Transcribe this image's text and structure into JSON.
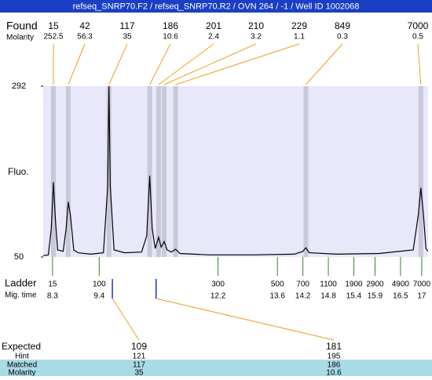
{
  "header": {
    "title": "refseq_SNRP70.F2 / refseq_SNRP70.R2 / OVN 264 / -1 / Well ID 1002068"
  },
  "chart_data": {
    "type": "line",
    "y_label": "Fluo.",
    "ylim": [
      50,
      292
    ],
    "yticks": [
      50,
      292
    ],
    "xlim": [
      8.08,
      17.15
    ],
    "found": {
      "label": "Found",
      "molarity_label": "Molarity",
      "sizes": [
        15,
        42,
        117,
        186,
        201,
        210,
        229,
        849,
        7000
      ],
      "molarities": [
        252.5,
        56.3,
        35,
        10.6,
        2.4,
        3.2,
        1.1,
        0.3,
        0.5
      ],
      "times": [
        8.32,
        8.67,
        9.63,
        10.59,
        10.8,
        10.93,
        11.2,
        14.27,
        16.98
      ]
    },
    "ladder": {
      "label": "Ladder",
      "time_label": "Mig. time",
      "sizes": [
        15,
        100,
        300,
        500,
        700,
        1100,
        1900,
        2900,
        4900,
        7000
      ],
      "times": [
        8.3,
        9.4,
        12.2,
        13.6,
        14.2,
        14.8,
        15.4,
        15.9,
        16.5,
        17
      ]
    },
    "series": [
      {
        "color": "#000000",
        "x": [
          8.08,
          8.2,
          8.27,
          8.32,
          8.37,
          8.42,
          8.55,
          8.62,
          8.67,
          8.72,
          8.8,
          8.9,
          9.2,
          9.5,
          9.6,
          9.63,
          9.66,
          9.75,
          10.0,
          10.4,
          10.52,
          10.59,
          10.65,
          10.72,
          10.8,
          10.86,
          10.93,
          11.0,
          11.1,
          11.2,
          11.3,
          12.0,
          13.0,
          14.0,
          14.2,
          14.27,
          14.35,
          15.0,
          16.0,
          16.8,
          16.92,
          16.98,
          17.04,
          17.1,
          17.15
        ],
        "values": [
          52,
          53,
          90,
          156,
          100,
          60,
          58,
          90,
          128,
          110,
          60,
          56,
          54,
          56,
          150,
          295,
          150,
          60,
          56,
          57,
          80,
          165,
          90,
          62,
          78,
          64,
          72,
          60,
          57,
          61,
          55,
          53,
          53,
          54,
          58,
          63,
          56,
          54,
          55,
          60,
          110,
          148,
          110,
          62,
          58
        ]
      }
    ]
  },
  "expected_table": {
    "row_labels": [
      "Expected",
      "Hint",
      "Matched",
      "Molarity"
    ],
    "rows": [
      [
        109,
        181
      ],
      [
        121,
        195
      ],
      [
        117,
        186
      ],
      [
        35,
        10.6
      ]
    ],
    "expected_times": [
      9.71,
      10.74
    ]
  }
}
